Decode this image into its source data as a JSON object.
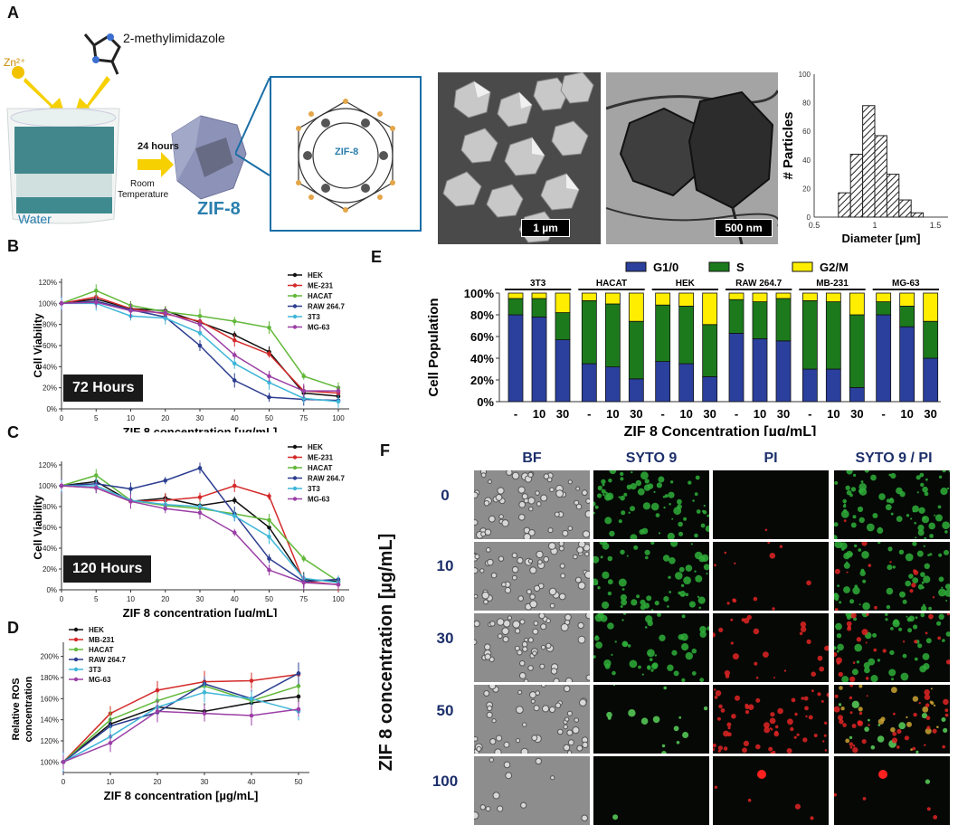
{
  "panels": {
    "A": "A",
    "B": "B",
    "C": "C",
    "D": "D",
    "E": "E",
    "F": "F"
  },
  "panelA": {
    "reagent": "2-methylimidazole",
    "zn": "Zn²⁺",
    "water": "Water",
    "arrow_time": "24 hours",
    "conditions_line1": "Room",
    "conditions_line2": "Temperature",
    "product": "ZIF-8",
    "structure_label": "ZIF-8",
    "sem_scale": "1 µm",
    "tem_scale": "500 nm",
    "hist": {
      "ylabel": "# Particles",
      "xlabel": "Diameter [µm]",
      "yticks": [
        "0",
        "20",
        "40",
        "60",
        "80",
        "100"
      ],
      "xticks": [
        "0.5",
        "1",
        "1.5"
      ],
      "bins": [
        0.75,
        0.85,
        0.95,
        1.05,
        1.15,
        1.25,
        1.35
      ],
      "counts": [
        17,
        44,
        78,
        57,
        30,
        12,
        3
      ],
      "color": "#222222"
    }
  },
  "panelB": {
    "box": "72 Hours",
    "ylabel": "Cell Viability",
    "xlabel": "ZIF 8 concentration [µg/mL]",
    "yticks": [
      "0%",
      "20%",
      "40%",
      "60%",
      "80%",
      "100%",
      "120%"
    ],
    "chart_data": {
      "type": "line",
      "x": [
        0,
        5,
        10,
        20,
        30,
        40,
        50,
        75,
        100
      ],
      "xticks": [
        "0",
        "5",
        "10",
        "20",
        "30",
        "40",
        "50",
        "75",
        "100"
      ],
      "ylim": [
        0,
        120
      ],
      "series": [
        {
          "name": "HEK",
          "color": "#111111",
          "values": [
            100,
            104,
            95,
            93,
            82,
            70,
            54,
            15,
            12
          ]
        },
        {
          "name": "ME-231",
          "color": "#d42a2a",
          "values": [
            100,
            106,
            95,
            90,
            83,
            65,
            52,
            17,
            15
          ]
        },
        {
          "name": "HACAT",
          "color": "#62b83a",
          "values": [
            100,
            112,
            98,
            92,
            88,
            83,
            77,
            31,
            20
          ]
        },
        {
          "name": "RAW 264.7",
          "color": "#2c3d8f",
          "values": [
            100,
            102,
            94,
            87,
            60,
            27,
            11,
            9,
            8
          ]
        },
        {
          "name": "3T3",
          "color": "#3fb6d8",
          "values": [
            100,
            100,
            88,
            86,
            72,
            43,
            25,
            10,
            7
          ]
        },
        {
          "name": "MG-63",
          "color": "#9b3fa6",
          "values": [
            100,
            101,
            93,
            91,
            80,
            51,
            31,
            17,
            17
          ]
        }
      ]
    }
  },
  "panelC": {
    "box": "120 Hours",
    "ylabel": "Cell Viability",
    "xlabel": "ZIF 8 concentration [µg/mL]",
    "yticks": [
      "0%",
      "20%",
      "40%",
      "60%",
      "80%",
      "100%",
      "120%"
    ],
    "chart_data": {
      "type": "line",
      "x": [
        0,
        5,
        10,
        20,
        30,
        40,
        50,
        75,
        100
      ],
      "xticks": [
        "0",
        "5",
        "10",
        "20",
        "30",
        "40",
        "50",
        "75",
        "100"
      ],
      "ylim": [
        0,
        120
      ],
      "series": [
        {
          "name": "HEK",
          "color": "#111111",
          "values": [
            100,
            104,
            85,
            88,
            81,
            86,
            60,
            10,
            8
          ]
        },
        {
          "name": "ME-231",
          "color": "#d42a2a",
          "values": [
            100,
            98,
            85,
            86,
            89,
            100,
            90,
            8,
            5
          ]
        },
        {
          "name": "HACAT",
          "color": "#62b83a",
          "values": [
            100,
            110,
            86,
            81,
            78,
            73,
            67,
            30,
            8
          ]
        },
        {
          "name": "RAW 264.7",
          "color": "#2c3d8f",
          "values": [
            100,
            102,
            97,
            105,
            117,
            73,
            30,
            8,
            10
          ]
        },
        {
          "name": "3T3",
          "color": "#3fb6d8",
          "values": [
            100,
            100,
            86,
            82,
            80,
            71,
            51,
            11,
            7
          ]
        },
        {
          "name": "MG-63",
          "color": "#9b3fa6",
          "values": [
            100,
            98,
            85,
            78,
            74,
            55,
            19,
            7,
            5
          ]
        }
      ]
    }
  },
  "panelD": {
    "ylabel1": "Relative ROS",
    "ylabel2": "concentration",
    "xlabel": "ZIF 8 concentration [µg/mL]",
    "yticks": [
      "100%",
      "120%",
      "140%",
      "160%",
      "180%",
      "200%"
    ],
    "chart_data": {
      "type": "line",
      "x": [
        0,
        10,
        20,
        30,
        40,
        50
      ],
      "xticks": [
        "0",
        "10",
        "20",
        "30",
        "40",
        "50"
      ],
      "ylim": [
        90,
        210
      ],
      "series": [
        {
          "name": "HEK",
          "color": "#111111",
          "values": [
            100,
            136,
            152,
            148,
            156,
            162
          ]
        },
        {
          "name": "MB-231",
          "color": "#d42a2a",
          "values": [
            100,
            146,
            168,
            176,
            177,
            183
          ]
        },
        {
          "name": "HACAT",
          "color": "#62b83a",
          "values": [
            100,
            140,
            158,
            172,
            158,
            172
          ]
        },
        {
          "name": "RAW 264.7",
          "color": "#2c3d8f",
          "values": [
            100,
            134,
            147,
            174,
            160,
            184
          ]
        },
        {
          "name": "3T3",
          "color": "#3fb6d8",
          "values": [
            100,
            124,
            152,
            166,
            160,
            148
          ]
        },
        {
          "name": "MG-63",
          "color": "#9b3fa6",
          "values": [
            100,
            118,
            148,
            146,
            144,
            150
          ]
        }
      ]
    }
  },
  "panelE": {
    "ylabel": "Cell Population",
    "xlabel": "ZIF 8 Concentration [µg/mL]",
    "yticks": [
      "0%",
      "20%",
      "40%",
      "60%",
      "80%",
      "100%"
    ],
    "chart_data": {
      "type": "bar",
      "stacked": true,
      "groups": [
        "3T3",
        "HACAT",
        "HEK",
        "RAW 264.7",
        "MB-231",
        "MG-63"
      ],
      "categories": [
        "-",
        "10",
        "30"
      ],
      "legend": [
        {
          "name": "G1/0",
          "color": "#2b3f9c"
        },
        {
          "name": "S",
          "color": "#1c7a1c"
        },
        {
          "name": "G2/M",
          "color": "#ffee00"
        }
      ],
      "data": [
        [
          [
            80,
            15,
            5
          ],
          [
            78,
            17,
            5
          ],
          [
            57,
            25,
            18
          ]
        ],
        [
          [
            35,
            58,
            7
          ],
          [
            32,
            58,
            10
          ],
          [
            21,
            53,
            26
          ]
        ],
        [
          [
            37,
            52,
            11
          ],
          [
            35,
            53,
            12
          ],
          [
            23,
            48,
            29
          ]
        ],
        [
          [
            63,
            31,
            6
          ],
          [
            58,
            34,
            8
          ],
          [
            56,
            39,
            5
          ]
        ],
        [
          [
            30,
            63,
            7
          ],
          [
            30,
            62,
            8
          ],
          [
            13,
            67,
            20
          ]
        ],
        [
          [
            80,
            12,
            8
          ],
          [
            69,
            19,
            12
          ],
          [
            40,
            34,
            26
          ]
        ]
      ]
    }
  },
  "panelF": {
    "headers": [
      "BF",
      "SYTO 9",
      "PI",
      "SYTO 9 / PI"
    ],
    "rows": [
      "0",
      "10",
      "30",
      "50",
      "100"
    ],
    "ylabel": "ZIF 8 concentration [µg/mL]"
  }
}
